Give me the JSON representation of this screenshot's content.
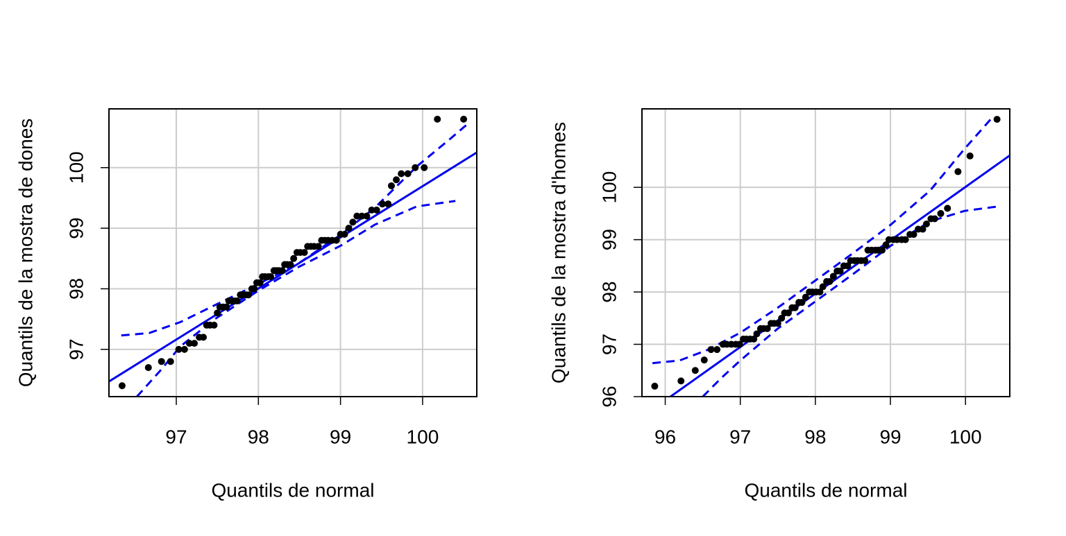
{
  "chart_data": [
    {
      "type": "qq",
      "x_label": "Quantils de normal",
      "y_label": "Quantils de la mostra de dones",
      "xlim": [
        96.18,
        100.66
      ],
      "ylim": [
        96.22,
        100.97
      ],
      "xticks": [
        97,
        98,
        99,
        100
      ],
      "yticks": [
        97,
        98,
        99,
        100
      ],
      "grid": true,
      "points": {
        "color": "#000000",
        "x": [
          96.34,
          96.66,
          96.82,
          96.93,
          97.03,
          97.1,
          97.16,
          97.22,
          97.28,
          97.33,
          97.37,
          97.41,
          97.46,
          97.5,
          97.53,
          97.57,
          97.61,
          97.64,
          97.68,
          97.71,
          97.74,
          97.78,
          97.81,
          97.85,
          97.88,
          97.92,
          97.95,
          97.98,
          98.02,
          98.05,
          98.08,
          98.12,
          98.15,
          98.19,
          98.22,
          98.25,
          98.29,
          98.32,
          98.35,
          98.39,
          98.43,
          98.47,
          98.51,
          98.56,
          98.6,
          98.64,
          98.68,
          98.73,
          98.77,
          98.81,
          98.85,
          98.9,
          98.95,
          99.0,
          99.05,
          99.1,
          99.15,
          99.2,
          99.26,
          99.32,
          99.38,
          99.44,
          99.51,
          99.58,
          99.62,
          99.68,
          99.74,
          99.82,
          99.91,
          100.02,
          100.18,
          100.5
        ],
        "values": [
          96.4,
          96.7,
          96.8,
          96.8,
          97.0,
          97.0,
          97.1,
          97.1,
          97.2,
          97.2,
          97.4,
          97.4,
          97.4,
          97.6,
          97.7,
          97.7,
          97.7,
          97.8,
          97.8,
          97.8,
          97.8,
          97.9,
          97.9,
          97.9,
          97.9,
          98.0,
          98.0,
          98.1,
          98.1,
          98.2,
          98.2,
          98.2,
          98.2,
          98.3,
          98.3,
          98.3,
          98.3,
          98.4,
          98.4,
          98.4,
          98.5,
          98.6,
          98.6,
          98.6,
          98.7,
          98.7,
          98.7,
          98.7,
          98.8,
          98.8,
          98.8,
          98.8,
          98.8,
          98.9,
          98.9,
          99.0,
          99.1,
          99.2,
          99.2,
          99.2,
          99.3,
          99.3,
          99.4,
          99.4,
          99.7,
          99.8,
          99.9,
          99.9,
          100.0,
          100.0,
          100.8,
          100.8
        ]
      },
      "reference_line": {
        "color": "#0000ee",
        "x": [
          96.18,
          100.66
        ],
        "values": [
          96.47,
          100.25
        ]
      },
      "band_upper": {
        "color": "#0000ee",
        "x": [
          96.33,
          96.67,
          97.05,
          97.47,
          98.0,
          98.49,
          99.0,
          99.42,
          99.93,
          100.35,
          100.53
        ],
        "values": [
          97.23,
          97.27,
          97.45,
          97.73,
          98.08,
          98.42,
          98.89,
          99.34,
          100.02,
          100.49,
          100.7
        ]
      },
      "band_lower": {
        "color": "#0000ee",
        "x": [
          96.52,
          96.8,
          97.05,
          97.47,
          98.0,
          98.49,
          99.0,
          99.42,
          99.93,
          100.4
        ],
        "values": [
          96.22,
          96.64,
          97.05,
          97.5,
          97.97,
          98.36,
          98.71,
          99.06,
          99.36,
          99.45
        ]
      }
    },
    {
      "type": "qq",
      "x_label": "Quantils de normal",
      "y_label": "Quantils de la mostra d'homes",
      "xlim": [
        95.69,
        100.59
      ],
      "ylim": [
        96,
        101.5
      ],
      "xticks": [
        96,
        97,
        98,
        99,
        100
      ],
      "yticks": [
        96,
        97,
        98,
        99,
        100
      ],
      "grid": true,
      "points": {
        "color": "#000000",
        "x": [
          95.86,
          96.21,
          96.4,
          96.52,
          96.61,
          96.69,
          96.77,
          96.82,
          96.88,
          96.94,
          96.99,
          97.04,
          97.08,
          97.13,
          97.18,
          97.22,
          97.27,
          97.31,
          97.36,
          97.41,
          97.45,
          97.5,
          97.55,
          97.59,
          97.64,
          97.69,
          97.73,
          97.78,
          97.82,
          97.87,
          97.92,
          97.96,
          98.01,
          98.06,
          98.1,
          98.15,
          98.19,
          98.24,
          98.29,
          98.33,
          98.38,
          98.43,
          98.47,
          98.52,
          98.56,
          98.61,
          98.66,
          98.7,
          98.75,
          98.8,
          98.84,
          98.89,
          98.94,
          98.98,
          99.04,
          99.09,
          99.15,
          99.2,
          99.26,
          99.31,
          99.37,
          99.43,
          99.48,
          99.54,
          99.59,
          99.67,
          99.76,
          99.9,
          100.06,
          100.42
        ],
        "values": [
          96.2,
          96.3,
          96.5,
          96.7,
          96.9,
          96.9,
          97.0,
          97.0,
          97.0,
          97.0,
          97.0,
          97.1,
          97.1,
          97.1,
          97.1,
          97.2,
          97.3,
          97.3,
          97.3,
          97.4,
          97.4,
          97.4,
          97.5,
          97.6,
          97.6,
          97.7,
          97.7,
          97.8,
          97.8,
          97.9,
          98.0,
          98.0,
          98.0,
          98.0,
          98.1,
          98.2,
          98.2,
          98.3,
          98.4,
          98.4,
          98.5,
          98.5,
          98.6,
          98.6,
          98.6,
          98.6,
          98.6,
          98.8,
          98.8,
          98.8,
          98.8,
          98.8,
          98.9,
          99.0,
          99.0,
          99.0,
          99.0,
          99.0,
          99.1,
          99.1,
          99.2,
          99.2,
          99.3,
          99.4,
          99.4,
          99.5,
          99.6,
          100.3,
          100.6,
          101.3
        ]
      },
      "reference_line": {
        "color": "#0000ee",
        "x": [
          96.07,
          100.59
        ],
        "values": [
          96.0,
          100.61
        ]
      },
      "band_upper": {
        "color": "#0000ee",
        "x": [
          95.83,
          96.19,
          96.56,
          97.0,
          97.49,
          98.0,
          98.51,
          99.0,
          99.53,
          99.99,
          100.36
        ],
        "values": [
          96.64,
          96.69,
          96.89,
          97.22,
          97.69,
          98.22,
          98.75,
          99.28,
          99.94,
          100.74,
          101.34
        ]
      },
      "band_lower": {
        "color": "#0000ee",
        "x": [
          96.5,
          96.75,
          97.0,
          97.49,
          98.0,
          98.51,
          99.0,
          99.53,
          99.99,
          100.41
        ],
        "values": [
          96.0,
          96.36,
          96.69,
          97.29,
          97.82,
          98.35,
          98.88,
          99.35,
          99.55,
          99.63
        ]
      }
    }
  ]
}
